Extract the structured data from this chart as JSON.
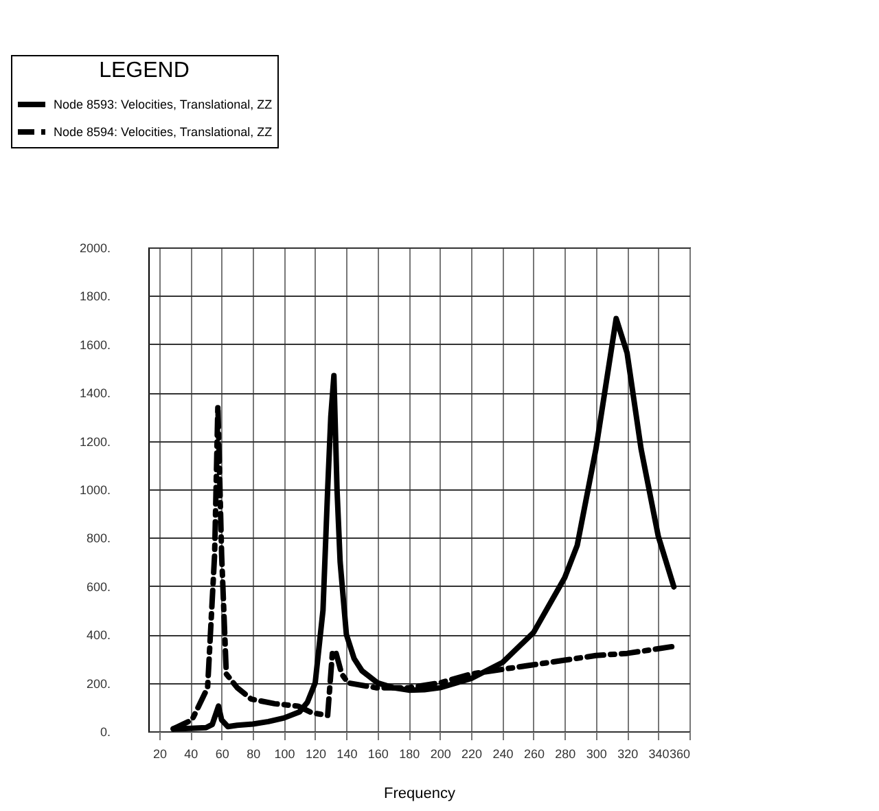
{
  "chart_data": {
    "type": "line",
    "xlabel": "Frequency",
    "legend_title": "LEGEND",
    "legend": "top left",
    "grid": true,
    "marker": "none",
    "xlim": [
      13,
      360
    ],
    "xticks": [
      20,
      40,
      60,
      80,
      100,
      120,
      140,
      160,
      180,
      200,
      220,
      240,
      260,
      280,
      300,
      320,
      340,
      360
    ],
    "ylim": [
      0,
      2000
    ],
    "yticks": [
      {
        "value": 0,
        "label": "0."
      },
      {
        "value": 200,
        "label": "200."
      },
      {
        "value": 400,
        "label": "400."
      },
      {
        "value": 600,
        "label": "600."
      },
      {
        "value": 800,
        "label": "800."
      },
      {
        "value": 1000,
        "label": "1000."
      },
      {
        "value": 1200,
        "label": "1200."
      },
      {
        "value": 1400,
        "label": "1400."
      },
      {
        "value": 1600,
        "label": "1600."
      },
      {
        "value": 1800,
        "label": "1800."
      },
      {
        "value": 2000,
        "label": "2000."
      }
    ],
    "series": [
      {
        "name": "Node 8593: Velocities, Translational, ZZ",
        "color": "#000000",
        "line_style": "solid",
        "x": [
          29,
          40,
          50,
          54,
          58,
          60,
          64,
          70,
          80,
          90,
          100,
          110,
          115,
          120,
          125,
          128,
          130,
          132,
          134,
          136,
          140,
          145,
          150,
          160,
          170,
          180,
          190,
          200,
          220,
          240,
          260,
          280,
          288,
          300,
          313,
          320,
          329,
          340,
          350
        ],
        "values": [
          10,
          12,
          15,
          28,
          104,
          47,
          19,
          25,
          30,
          40,
          55,
          80,
          120,
          200,
          500,
          1000,
          1300,
          1470,
          1000,
          700,
          400,
          300,
          250,
          200,
          180,
          170,
          172,
          180,
          218,
          284,
          408,
          635,
          768,
          1166,
          1706,
          1564,
          1166,
          806,
          597
        ]
      },
      {
        "name": "Node 8594: Velocities, Translational, ZZ",
        "color": "#000000",
        "line_style": "dashed",
        "x": [
          29,
          41,
          51,
          55.5,
          57.6,
          60,
          63,
          70,
          79,
          94,
          109,
          118,
          128,
          131,
          133,
          137,
          141,
          159,
          180,
          200,
          220,
          240,
          260,
          280,
          300,
          320,
          350
        ],
        "values": [
          10,
          47,
          180,
          730,
          1346,
          730,
          237,
          180,
          133,
          114,
          104,
          76,
          66,
          322,
          332,
          237,
          200,
          180,
          180,
          200,
          237,
          256,
          275,
          294,
          313,
          322,
          351
        ]
      }
    ]
  }
}
